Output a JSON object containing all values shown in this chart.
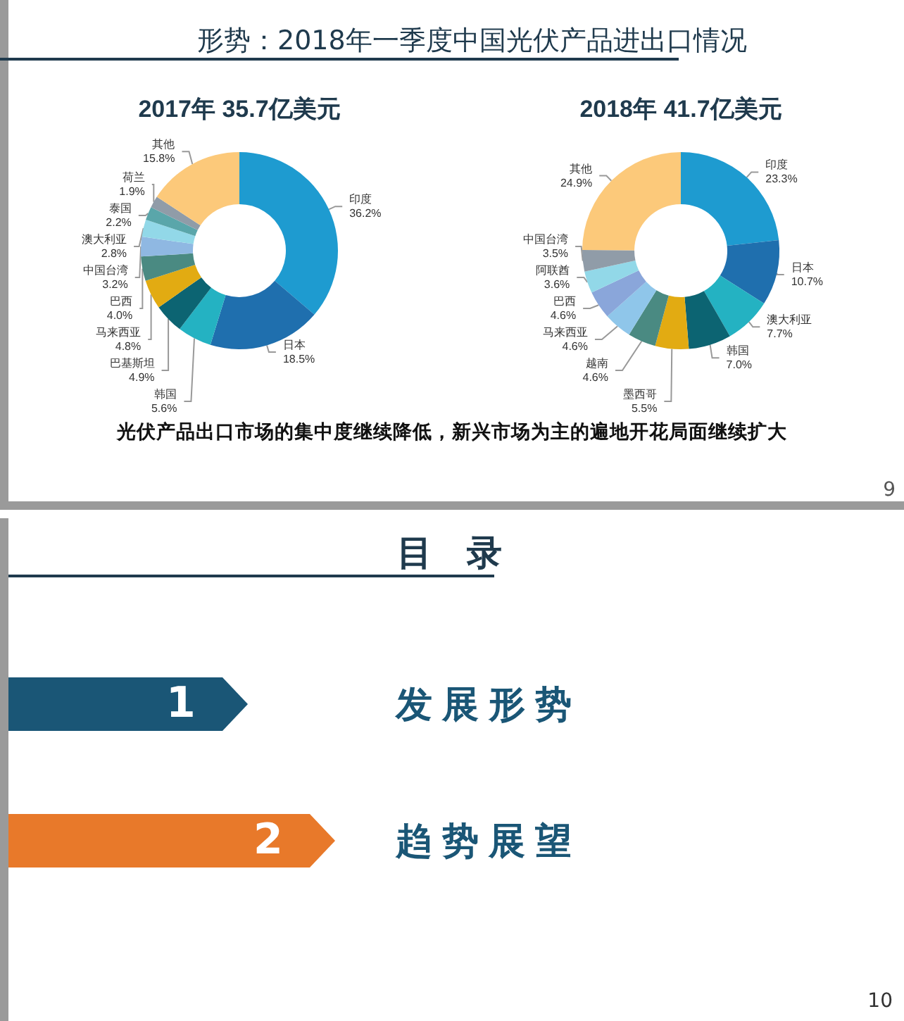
{
  "chart_data": [
    {
      "type": "donut",
      "title": "形势：2018年一季度中国光伏产品进出口情况",
      "subtitle": "2017年 35.7亿美元",
      "categories": [
        "印度",
        "日本",
        "韩国",
        "巴基斯坦",
        "马来西亚",
        "巴西",
        "中国台湾",
        "澳大利亚",
        "泰国",
        "荷兰",
        "其他"
      ],
      "values": [
        36.2,
        18.5,
        5.6,
        4.9,
        4.8,
        4.0,
        3.2,
        2.8,
        2.2,
        1.9,
        15.8
      ],
      "value_labels": [
        "36.2%",
        "18.5%",
        "5.6%",
        "4.9%",
        "4.8%",
        "4.0%",
        "3.2%",
        "2.8%",
        "2.2%",
        "1.9%",
        "15.8%"
      ],
      "colors": [
        "#1e9bd0",
        "#1f6fae",
        "#24b2c2",
        "#0c6472",
        "#e2ab12",
        "#4a8a82",
        "#8fb8e2",
        "#92d8e8",
        "#5aa6aa",
        "#909ca8",
        "#fcc97a"
      ],
      "annotations": [
        "光伏产品出口市场的集中度继续降低，新兴市场为主的遍地开花局面继续扩大",
        "9"
      ]
    },
    {
      "type": "donut",
      "title": "2018年 41.7亿美元",
      "categories": [
        "印度",
        "日本",
        "澳大利亚",
        "韩国",
        "墨西哥",
        "越南",
        "马来西亚",
        "巴西",
        "阿联酋",
        "中国台湾",
        "其他"
      ],
      "values": [
        23.3,
        10.7,
        7.7,
        7.0,
        5.5,
        4.6,
        4.6,
        4.6,
        3.6,
        3.5,
        24.9
      ],
      "value_labels": [
        "23.3%",
        "10.7%",
        "7.7%",
        "7.0%",
        "5.5%",
        "4.6%",
        "4.6%",
        "4.6%",
        "3.6%",
        "3.5%",
        "24.9%"
      ],
      "colors": [
        "#1e9bd0",
        "#1f6fae",
        "#24b2c2",
        "#0c6472",
        "#e2ab12",
        "#4a8a82",
        "#8fc6ea",
        "#8aa6da",
        "#92d8e8",
        "#909ca8",
        "#fcc97a"
      ]
    },
    {
      "type": "other",
      "title": "目 录",
      "annotations": [
        "1",
        "发展形势",
        "2",
        "趋势展望",
        "10"
      ]
    }
  ]
}
